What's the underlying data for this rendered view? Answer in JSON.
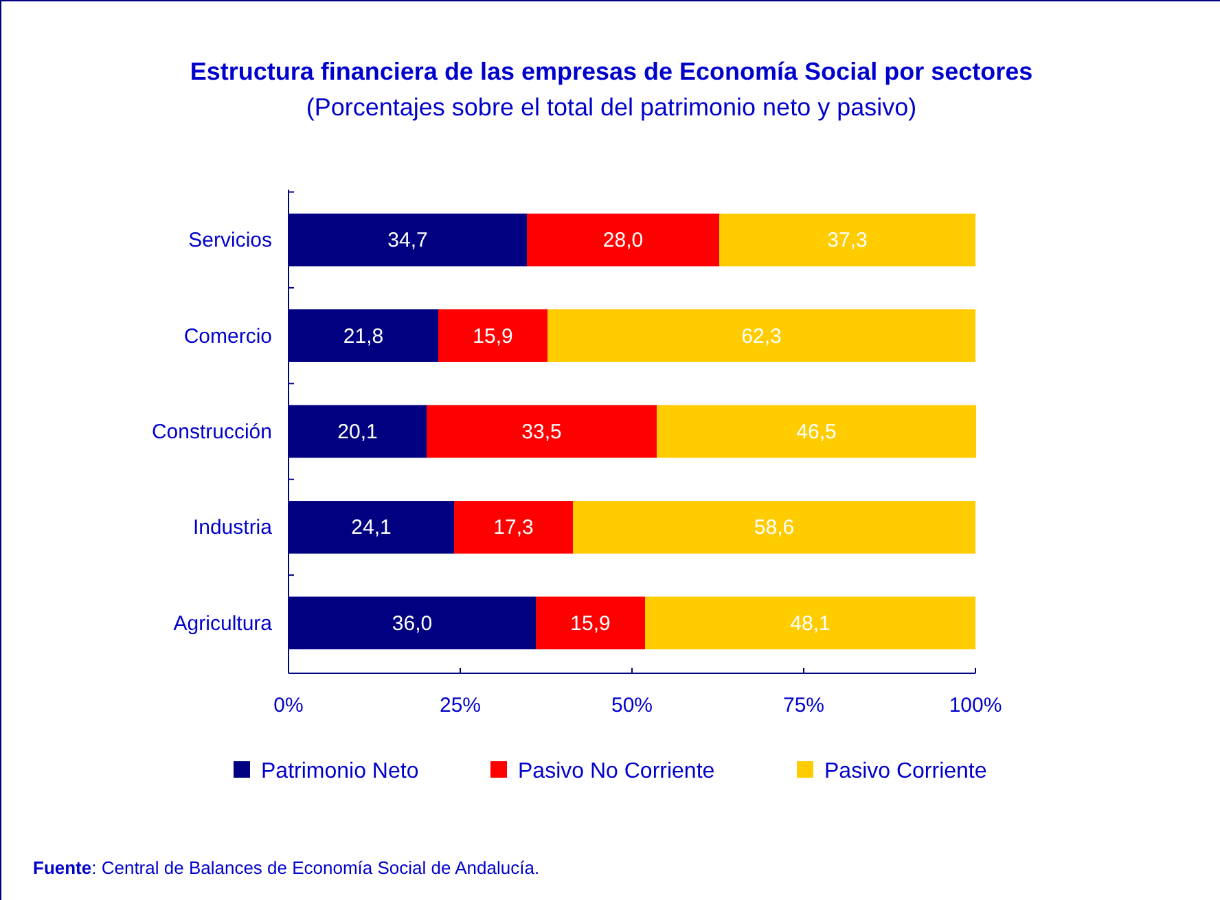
{
  "chart_data": {
    "type": "bar",
    "orientation": "horizontal",
    "stacked": true,
    "title": "Estructura financiera de las empresas de Economía Social por sectores",
    "subtitle": "(Porcentajes sobre el total del patrimonio neto y pasivo)",
    "categories": [
      "Servicios",
      "Comercio",
      "Construcción",
      "Industria",
      "Agricultura"
    ],
    "series": [
      {
        "name": "Patrimonio Neto",
        "color": "#000080",
        "values": [
          34.7,
          21.8,
          20.1,
          24.1,
          36.0
        ],
        "value_labels": [
          "34,7",
          "21,8",
          "20,1",
          "24,1",
          "36,0"
        ]
      },
      {
        "name": "Pasivo No Corriente",
        "color": "#ff0000",
        "values": [
          28.0,
          15.9,
          33.5,
          17.3,
          15.9
        ],
        "value_labels": [
          "28,0",
          "15,9",
          "33,5",
          "17,3",
          "15,9"
        ]
      },
      {
        "name": "Pasivo Corriente",
        "color": "#ffcc00",
        "values": [
          37.3,
          62.3,
          46.5,
          58.6,
          48.1
        ],
        "value_labels": [
          "37,3",
          "62,3",
          "46,5",
          "58,6",
          "48,1"
        ]
      }
    ],
    "xlim": [
      0,
      100
    ],
    "xticks": [
      {
        "value": 0,
        "label": "0%"
      },
      {
        "value": 25,
        "label": "25%"
      },
      {
        "value": 50,
        "label": "50%"
      },
      {
        "value": 75,
        "label": "75%"
      },
      {
        "value": 100,
        "label": "100%"
      }
    ],
    "grid": false,
    "legend": "bottom",
    "annotations": [
      "Fuente: Central de Balances de Economía Social de Andalucía."
    ]
  }
}
